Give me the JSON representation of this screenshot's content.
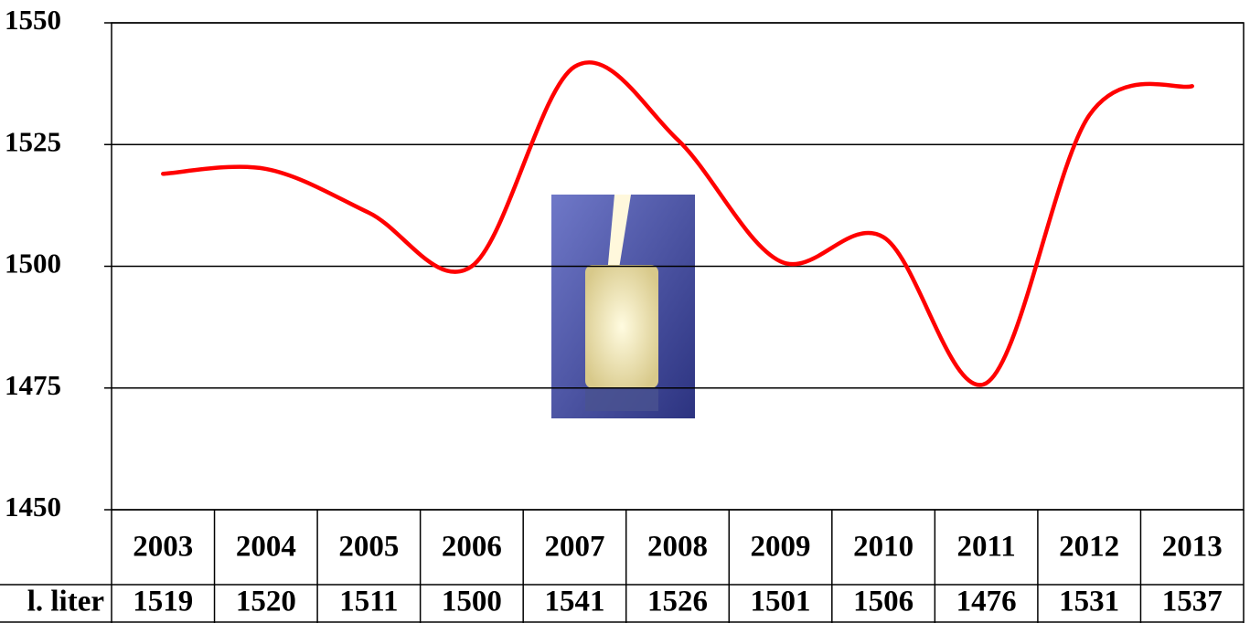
{
  "chart_data": {
    "type": "line",
    "categories": [
      "2003",
      "2004",
      "2005",
      "2006",
      "2007",
      "2008",
      "2009",
      "2010",
      "2011",
      "2012",
      "2013"
    ],
    "series": [
      {
        "name": "l. liter",
        "color": "#ff0000",
        "values": [
          1519,
          1520,
          1511,
          1500,
          1541,
          1526,
          1501,
          1506,
          1476,
          1531,
          1537
        ]
      }
    ],
    "ylim": [
      1450,
      1550
    ],
    "yticks": [
      1450,
      1475,
      1500,
      1525,
      1550
    ],
    "grid": true
  }
}
